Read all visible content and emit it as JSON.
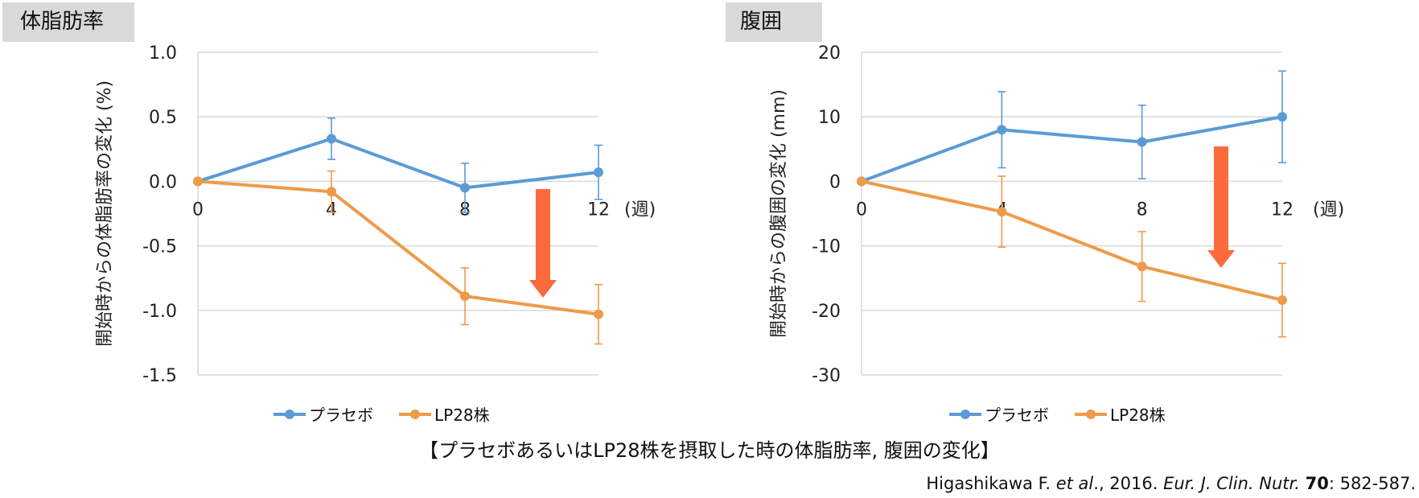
{
  "page": {
    "caption": "【プラセボあるいはLP28株を摂取した時の体脂肪率, 腹囲の変化】",
    "citation": {
      "author": "Higashikawa F. ",
      "etal": "et al",
      "mid": "., 2016. ",
      "journal": "Eur. J. Clin. Nutr.",
      "volume": "70",
      "pages": ": 582-587."
    }
  },
  "colors": {
    "placebo": "#5b9bd5",
    "lp28": "#ed9b4a",
    "arrow": "#ff6a3d",
    "grid": "#d9d9d9"
  },
  "chart_data": [
    {
      "type": "line",
      "panel_label": "体脂肪率",
      "ylabel": "開始時からの体脂肪率の変化 (%)",
      "x": [
        0,
        4,
        8,
        12
      ],
      "x_unit_label": "(週)",
      "ylim": [
        -1.5,
        1.0
      ],
      "yticks": [
        1.0,
        0.5,
        0.0,
        -0.5,
        -1.0,
        -1.5
      ],
      "ytick_labels": [
        "1.0",
        "0.5",
        "0.0",
        "-0.5",
        "-1.0",
        "-1.5"
      ],
      "grid": true,
      "legend": "bottom",
      "series": [
        {
          "name": "プラセボ",
          "values": [
            0,
            0.33,
            -0.05,
            0.07
          ],
          "err": [
            0,
            0.16,
            0.19,
            0.21
          ]
        },
        {
          "name": "LP28株",
          "values": [
            0,
            -0.08,
            -0.89,
            -1.03
          ],
          "err": [
            0,
            0.16,
            0.22,
            0.23
          ]
        }
      ],
      "annotation": "down-arrow"
    },
    {
      "type": "line",
      "panel_label": "腹囲",
      "ylabel": "開始時からの腹囲の変化 (mm)",
      "x": [
        0,
        4,
        8,
        12
      ],
      "x_unit_label": "(週)",
      "ylim": [
        -30,
        20
      ],
      "yticks": [
        20,
        10,
        0,
        -10,
        -20,
        -30
      ],
      "ytick_labels": [
        "20",
        "10",
        "0",
        "-10",
        "-20",
        "-30"
      ],
      "grid": true,
      "legend": "bottom",
      "series": [
        {
          "name": "プラセボ",
          "values": [
            0,
            8.0,
            6.1,
            10.0
          ],
          "err": [
            0,
            5.9,
            5.7,
            7.1
          ]
        },
        {
          "name": "LP28株",
          "values": [
            0,
            -4.7,
            -13.2,
            -18.4
          ],
          "err": [
            0,
            5.5,
            5.4,
            5.7
          ]
        }
      ],
      "annotation": "down-arrow"
    }
  ]
}
